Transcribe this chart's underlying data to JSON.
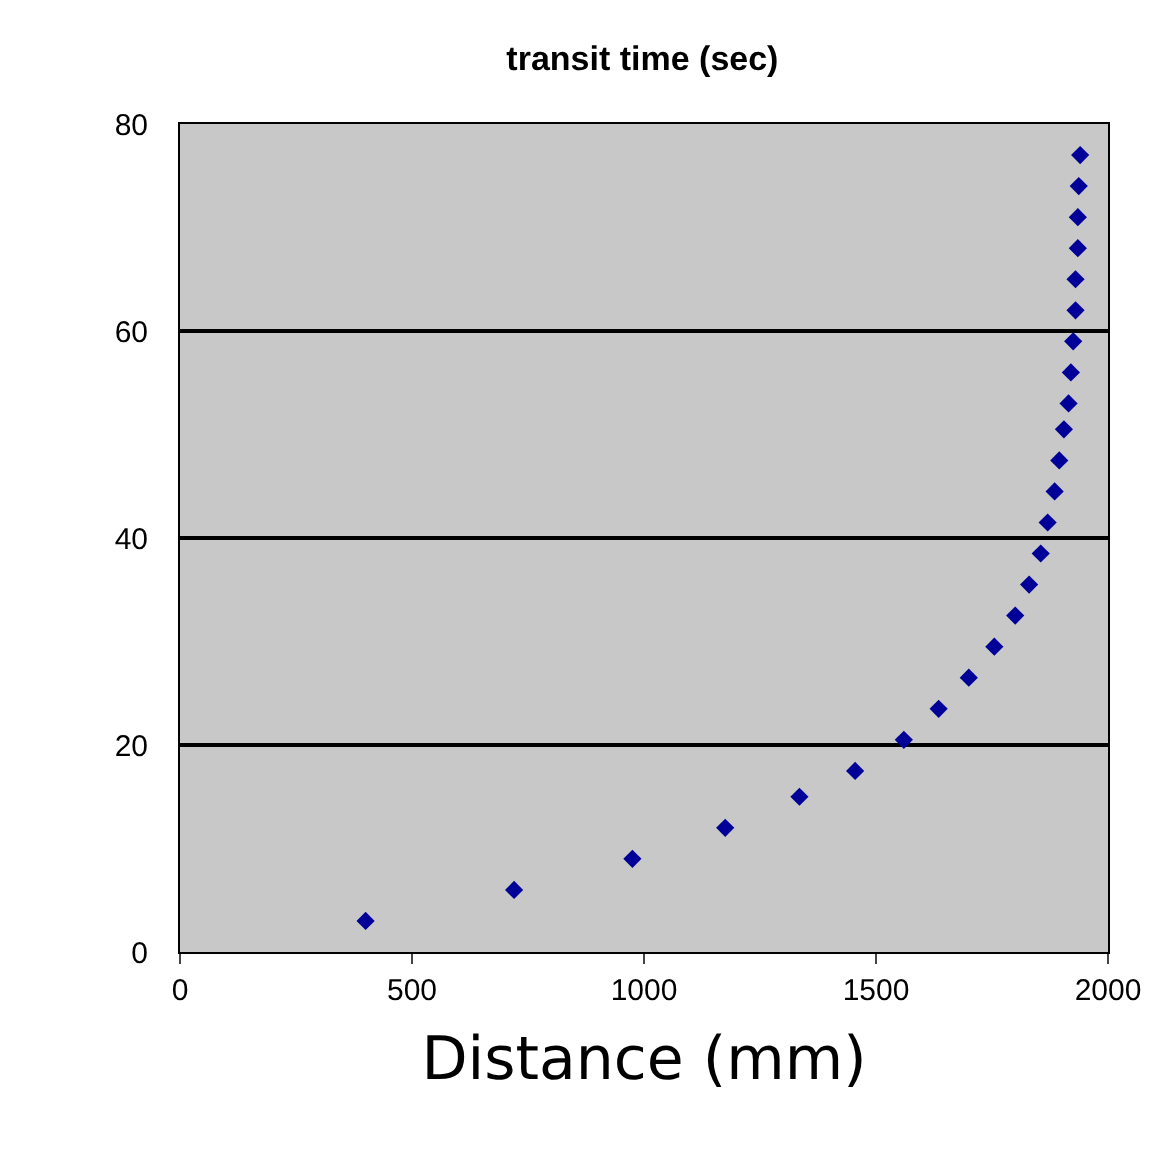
{
  "chart_data": {
    "type": "scatter",
    "title": "transit time (sec)",
    "xlabel": "Distance (mm)",
    "x": [
      400,
      720,
      975,
      1175,
      1335,
      1455,
      1560,
      1635,
      1700,
      1755,
      1800,
      1830,
      1855,
      1870,
      1885,
      1895,
      1905,
      1915,
      1920,
      1925,
      1930,
      1930,
      1935,
      1935,
      1937,
      1940
    ],
    "series": [
      {
        "color": "#000099",
        "values": [
          3,
          6,
          9,
          12,
          15,
          17.5,
          20.5,
          23.5,
          26.5,
          29.5,
          32.5,
          35.5,
          38.5,
          41.5,
          44.5,
          47.5,
          50.5,
          53,
          56,
          59,
          62,
          65,
          68,
          71,
          74,
          77
        ]
      }
    ],
    "xlim": [
      0,
      2000
    ],
    "xticks": [
      0,
      500,
      1000,
      1500,
      2000
    ],
    "ylim": [
      0,
      80
    ],
    "yticks": [
      0,
      20,
      40,
      60,
      80
    ],
    "grid": "y",
    "legend": false,
    "marker": "diamond"
  }
}
